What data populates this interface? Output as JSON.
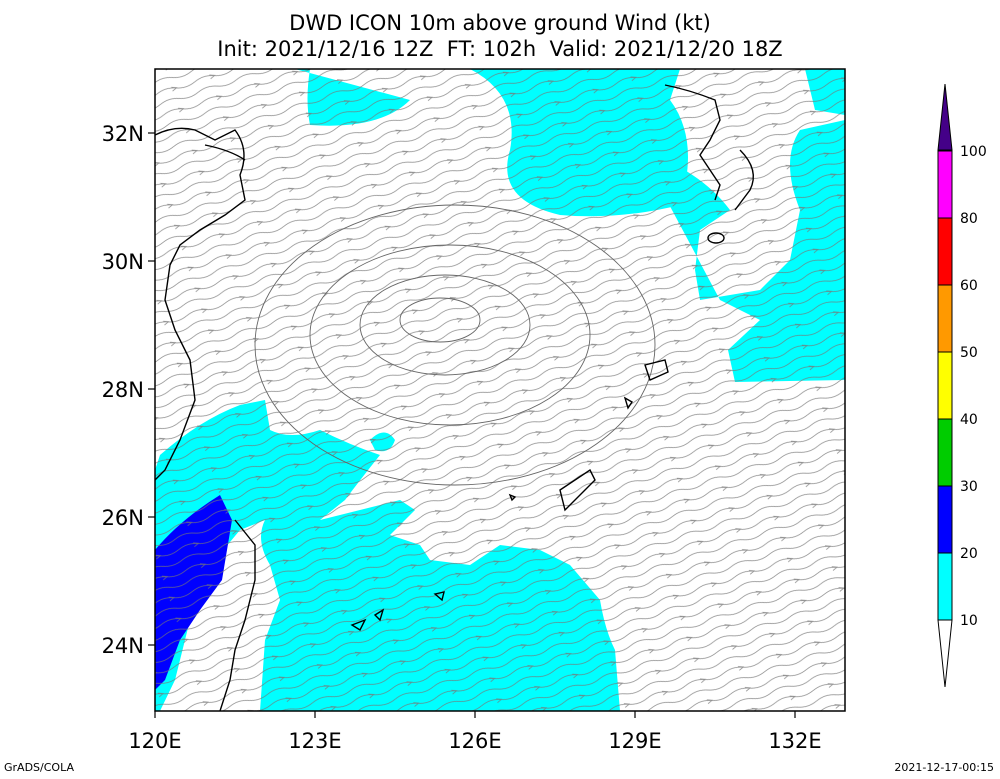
{
  "title_line1": "DWD ICON 10m above ground Wind (kt)",
  "title_line2": "Init: 2021/12/16 12Z  FT: 102h  Valid: 2021/12/20 18Z",
  "lat_labels": [
    "32N",
    "30N",
    "28N",
    "26N",
    "24N"
  ],
  "lon_labels": [
    "120E",
    "123E",
    "126E",
    "129E",
    "132E"
  ],
  "colorbar": {
    "labels": [
      "10",
      "20",
      "30",
      "40",
      "50",
      "60",
      "80",
      "100"
    ],
    "colors": [
      "#00ffff",
      "#0000ff",
      "#00cc00",
      "#ffff00",
      "#ff9900",
      "#ff0000",
      "#ff00ff",
      "#440088"
    ]
  },
  "footer_left": "GrADS/COLA",
  "footer_right": "2021-12-17-00:15"
}
